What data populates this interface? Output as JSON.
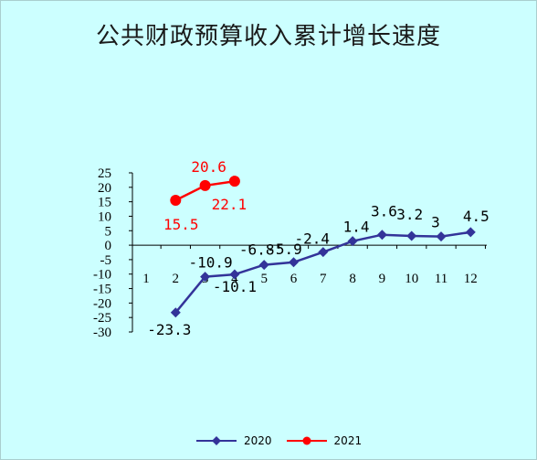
{
  "chart_data": {
    "type": "line",
    "title": "公共财政预算收入累计增长速度",
    "xlabel": "",
    "ylabel": "",
    "categories": [
      "1",
      "2",
      "3",
      "4",
      "5",
      "6",
      "7",
      "8",
      "9",
      "10",
      "11",
      "12"
    ],
    "ylim": [
      -30,
      25
    ],
    "yticks": [
      "25",
      "20",
      "15",
      "10",
      "5",
      "0",
      "-5",
      "-10",
      "-15",
      "-20",
      "-25",
      "-30"
    ],
    "grid": false,
    "legend_position": "bottom",
    "series": [
      {
        "name": "2020",
        "color": "#333399",
        "marker": "diamond",
        "x": [
          2,
          3,
          4,
          5,
          6,
          7,
          8,
          9,
          10,
          11,
          12
        ],
        "values": [
          -23.3,
          -10.9,
          -10.1,
          -6.8,
          -5.9,
          -2.4,
          1.4,
          3.6,
          3.2,
          3,
          4.5
        ],
        "labels": [
          "-23.3",
          "-10.9",
          "-10.1",
          "-6.8",
          "-5.9",
          "-2.4",
          "1.4",
          "3.6",
          "3.2",
          "3",
          "4.5"
        ]
      },
      {
        "name": "2021",
        "color": "#ff0000",
        "marker": "circle",
        "x": [
          2,
          3,
          4
        ],
        "values": [
          15.5,
          20.6,
          22.1
        ],
        "labels": [
          "15.5",
          "20.6",
          "22.1"
        ]
      }
    ]
  }
}
